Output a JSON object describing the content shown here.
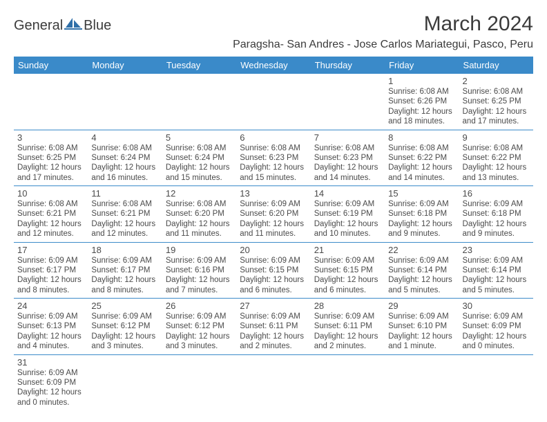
{
  "brand": {
    "name_left": "General",
    "name_right": "Blue"
  },
  "title": "March 2024",
  "location": "Paragsha- San Andres - Jose Carlos Mariategui, Pasco, Peru",
  "colors": {
    "header_bg": "#3a8ac9",
    "text": "#3b3b3b",
    "line": "#3a8ac9"
  },
  "day_headers": [
    "Sunday",
    "Monday",
    "Tuesday",
    "Wednesday",
    "Thursday",
    "Friday",
    "Saturday"
  ],
  "weeks": [
    [
      null,
      null,
      null,
      null,
      null,
      {
        "n": "1",
        "sr": "6:08 AM",
        "ss": "6:26 PM",
        "dl": "12 hours and 18 minutes."
      },
      {
        "n": "2",
        "sr": "6:08 AM",
        "ss": "6:25 PM",
        "dl": "12 hours and 17 minutes."
      }
    ],
    [
      {
        "n": "3",
        "sr": "6:08 AM",
        "ss": "6:25 PM",
        "dl": "12 hours and 17 minutes."
      },
      {
        "n": "4",
        "sr": "6:08 AM",
        "ss": "6:24 PM",
        "dl": "12 hours and 16 minutes."
      },
      {
        "n": "5",
        "sr": "6:08 AM",
        "ss": "6:24 PM",
        "dl": "12 hours and 15 minutes."
      },
      {
        "n": "6",
        "sr": "6:08 AM",
        "ss": "6:23 PM",
        "dl": "12 hours and 15 minutes."
      },
      {
        "n": "7",
        "sr": "6:08 AM",
        "ss": "6:23 PM",
        "dl": "12 hours and 14 minutes."
      },
      {
        "n": "8",
        "sr": "6:08 AM",
        "ss": "6:22 PM",
        "dl": "12 hours and 14 minutes."
      },
      {
        "n": "9",
        "sr": "6:08 AM",
        "ss": "6:22 PM",
        "dl": "12 hours and 13 minutes."
      }
    ],
    [
      {
        "n": "10",
        "sr": "6:08 AM",
        "ss": "6:21 PM",
        "dl": "12 hours and 12 minutes."
      },
      {
        "n": "11",
        "sr": "6:08 AM",
        "ss": "6:21 PM",
        "dl": "12 hours and 12 minutes."
      },
      {
        "n": "12",
        "sr": "6:08 AM",
        "ss": "6:20 PM",
        "dl": "12 hours and 11 minutes."
      },
      {
        "n": "13",
        "sr": "6:09 AM",
        "ss": "6:20 PM",
        "dl": "12 hours and 11 minutes."
      },
      {
        "n": "14",
        "sr": "6:09 AM",
        "ss": "6:19 PM",
        "dl": "12 hours and 10 minutes."
      },
      {
        "n": "15",
        "sr": "6:09 AM",
        "ss": "6:18 PM",
        "dl": "12 hours and 9 minutes."
      },
      {
        "n": "16",
        "sr": "6:09 AM",
        "ss": "6:18 PM",
        "dl": "12 hours and 9 minutes."
      }
    ],
    [
      {
        "n": "17",
        "sr": "6:09 AM",
        "ss": "6:17 PM",
        "dl": "12 hours and 8 minutes."
      },
      {
        "n": "18",
        "sr": "6:09 AM",
        "ss": "6:17 PM",
        "dl": "12 hours and 8 minutes."
      },
      {
        "n": "19",
        "sr": "6:09 AM",
        "ss": "6:16 PM",
        "dl": "12 hours and 7 minutes."
      },
      {
        "n": "20",
        "sr": "6:09 AM",
        "ss": "6:15 PM",
        "dl": "12 hours and 6 minutes."
      },
      {
        "n": "21",
        "sr": "6:09 AM",
        "ss": "6:15 PM",
        "dl": "12 hours and 6 minutes."
      },
      {
        "n": "22",
        "sr": "6:09 AM",
        "ss": "6:14 PM",
        "dl": "12 hours and 5 minutes."
      },
      {
        "n": "23",
        "sr": "6:09 AM",
        "ss": "6:14 PM",
        "dl": "12 hours and 5 minutes."
      }
    ],
    [
      {
        "n": "24",
        "sr": "6:09 AM",
        "ss": "6:13 PM",
        "dl": "12 hours and 4 minutes."
      },
      {
        "n": "25",
        "sr": "6:09 AM",
        "ss": "6:12 PM",
        "dl": "12 hours and 3 minutes."
      },
      {
        "n": "26",
        "sr": "6:09 AM",
        "ss": "6:12 PM",
        "dl": "12 hours and 3 minutes."
      },
      {
        "n": "27",
        "sr": "6:09 AM",
        "ss": "6:11 PM",
        "dl": "12 hours and 2 minutes."
      },
      {
        "n": "28",
        "sr": "6:09 AM",
        "ss": "6:11 PM",
        "dl": "12 hours and 2 minutes."
      },
      {
        "n": "29",
        "sr": "6:09 AM",
        "ss": "6:10 PM",
        "dl": "12 hours and 1 minute."
      },
      {
        "n": "30",
        "sr": "6:09 AM",
        "ss": "6:09 PM",
        "dl": "12 hours and 0 minutes."
      }
    ],
    [
      {
        "n": "31",
        "sr": "6:09 AM",
        "ss": "6:09 PM",
        "dl": "12 hours and 0 minutes."
      },
      null,
      null,
      null,
      null,
      null,
      null
    ]
  ],
  "labels": {
    "sunrise": "Sunrise:",
    "sunset": "Sunset:",
    "daylight": "Daylight:"
  }
}
